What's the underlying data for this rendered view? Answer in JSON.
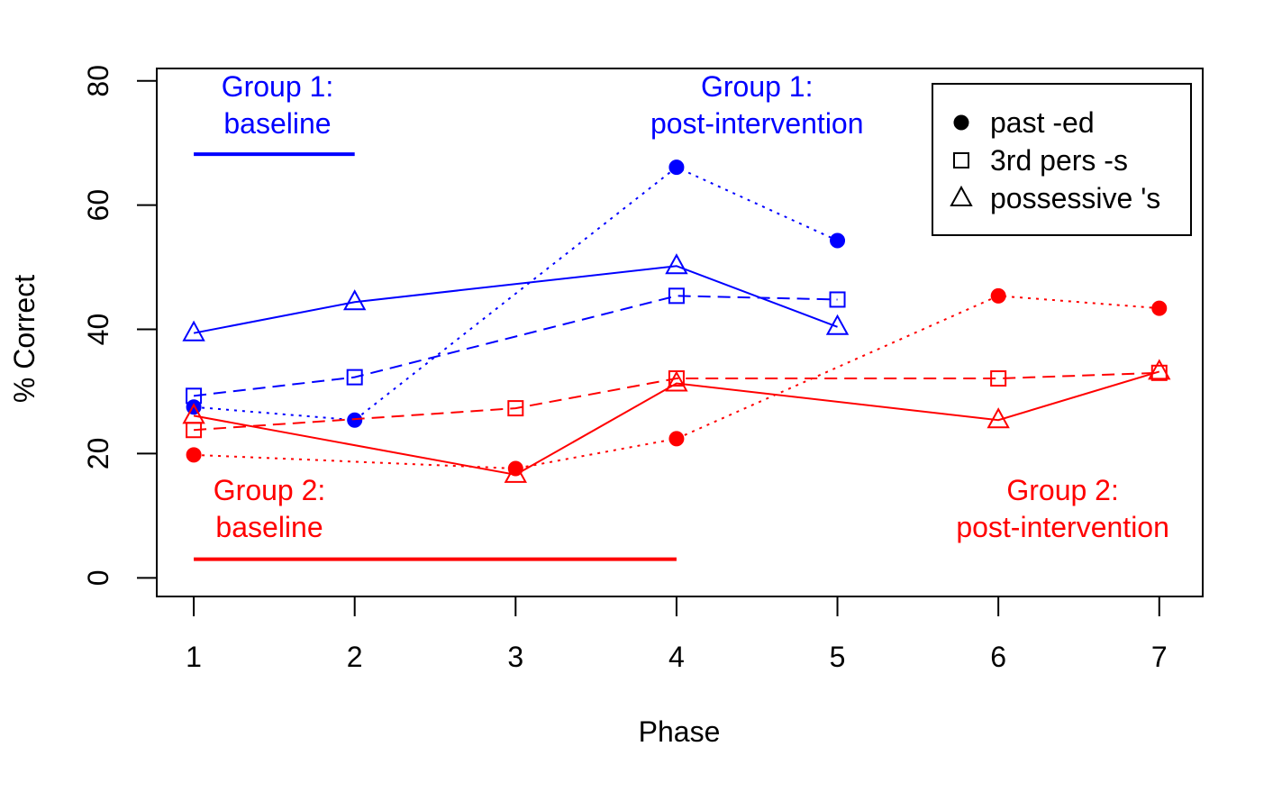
{
  "chart_data": {
    "type": "line",
    "xlabel": "Phase",
    "ylabel": "% Correct",
    "x_ticks": [
      1,
      2,
      3,
      4,
      5,
      6,
      7
    ],
    "y_ticks": [
      0,
      20,
      40,
      60,
      80
    ],
    "xlim": [
      0.77,
      7.27
    ],
    "ylim": [
      -3,
      82
    ],
    "grid": false,
    "legend_position": "top-right",
    "legend": [
      {
        "label": "past -ed",
        "marker": "filled-circle"
      },
      {
        "label": "3rd pers -s",
        "marker": "open-square"
      },
      {
        "label": "possessive 's",
        "marker": "open-triangle"
      }
    ],
    "colors": {
      "group1": "#0000ff",
      "group2": "#ff0000"
    },
    "series": [
      {
        "group": "Group 1",
        "measure": "past -ed",
        "marker": "filled-circle",
        "line": "dotted",
        "color": "#0000ff",
        "x": [
          1,
          2,
          4,
          5
        ],
        "y": [
          27.5,
          25.4,
          66.1,
          54.3
        ]
      },
      {
        "group": "Group 1",
        "measure": "3rd pers -s",
        "marker": "open-square",
        "line": "dashed",
        "color": "#0000ff",
        "x": [
          1,
          2,
          4,
          5
        ],
        "y": [
          29.3,
          32.3,
          45.4,
          44.8
        ]
      },
      {
        "group": "Group 1",
        "measure": "possessive 's",
        "marker": "open-triangle",
        "line": "solid",
        "color": "#0000ff",
        "x": [
          1,
          2,
          4,
          5
        ],
        "y": [
          39.4,
          44.4,
          50.2,
          40.4
        ]
      },
      {
        "group": "Group 2",
        "measure": "past -ed",
        "marker": "filled-circle",
        "line": "dotted",
        "color": "#ff0000",
        "x": [
          1,
          3,
          4,
          6,
          7
        ],
        "y": [
          19.8,
          17.6,
          22.4,
          45.4,
          43.4
        ]
      },
      {
        "group": "Group 2",
        "measure": "3rd pers -s",
        "marker": "open-square",
        "line": "dashed",
        "color": "#ff0000",
        "x": [
          1,
          3,
          4,
          6,
          7
        ],
        "y": [
          23.8,
          27.3,
          32.1,
          32.1,
          33.0
        ]
      },
      {
        "group": "Group 2",
        "measure": "possessive 's",
        "marker": "open-triangle",
        "line": "solid",
        "color": "#ff0000",
        "x": [
          1,
          3,
          4,
          6,
          7
        ],
        "y": [
          26.1,
          16.6,
          31.3,
          25.4,
          33.2
        ]
      }
    ],
    "annotations": [
      {
        "lines": [
          "Group 1:",
          "baseline"
        ],
        "color": "#0000ff",
        "x": 1.52,
        "y_top": 77.5
      },
      {
        "lines": [
          "Group 1:",
          "post-intervention"
        ],
        "color": "#0000ff",
        "x": 4.5,
        "y_top": 77.5
      },
      {
        "lines": [
          "Group 2:",
          "baseline"
        ],
        "color": "#ff0000",
        "x": 1.47,
        "y_top": 12.5
      },
      {
        "lines": [
          "Group 2:",
          "post-intervention"
        ],
        "color": "#ff0000",
        "x": 6.4,
        "y_top": 12.5
      }
    ],
    "phase_bars": [
      {
        "label": "Group 1: baseline",
        "color": "#0000ff",
        "x": [
          1,
          2
        ],
        "y": 68.2
      },
      {
        "label": "Group 2: baseline",
        "color": "#ff0000",
        "x": [
          1,
          4
        ],
        "y": 3.0
      }
    ]
  }
}
